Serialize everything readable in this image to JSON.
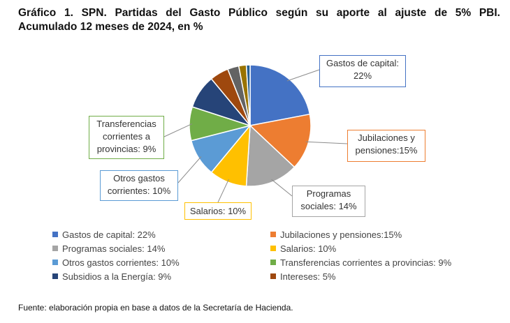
{
  "title": {
    "line1": "Gráfico 1. SPN. Partidas del Gasto Público según su aporte al ajuste de 5% PBI.",
    "line2": "Acumulado 12 meses de 2024, en %"
  },
  "chart_data": {
    "type": "pie",
    "title": "Gráfico 1. SPN. Partidas del Gasto Público según su aporte al ajuste de 5% PBI. Acumulado 12 meses de 2024, en %",
    "unit": "%",
    "slices": [
      {
        "name": "Gastos de capital",
        "value": 22,
        "color": "#4472C4"
      },
      {
        "name": "Jubilaciones y pensiones",
        "value": 15,
        "color": "#ED7D31"
      },
      {
        "name": "Programas sociales",
        "value": 14,
        "color": "#A5A5A5"
      },
      {
        "name": "Salarios",
        "value": 10,
        "color": "#FFC000"
      },
      {
        "name": "Otros gastos corrientes",
        "value": 10,
        "color": "#5B9BD5"
      },
      {
        "name": "Transferencias corrientes a provincias",
        "value": 9,
        "color": "#70AD47"
      },
      {
        "name": "Subsidios a la Energía",
        "value": 9,
        "color": "#264478"
      },
      {
        "name": "Intereses",
        "value": 5,
        "color": "#9E480E"
      },
      {
        "name": "",
        "value": 3,
        "color": "#636363"
      },
      {
        "name": "",
        "value": 2,
        "color": "#997300"
      },
      {
        "name": "",
        "value": 1,
        "color": "#255E91"
      }
    ],
    "callouts": [
      {
        "lines": [
          "Gastos de capital:",
          "22%"
        ],
        "color": "#4472C4"
      },
      {
        "lines": [
          "Jubilaciones y",
          "pensiones:15%"
        ],
        "color": "#ED7D31"
      },
      {
        "lines": [
          "Programas",
          "sociales: 14%"
        ],
        "color": "#A5A5A5"
      },
      {
        "lines": [
          "Salarios: 10%"
        ],
        "color": "#FFC000"
      },
      {
        "lines": [
          "Otros gastos",
          "corrientes: 10%"
        ],
        "color": "#5B9BD5"
      },
      {
        "lines": [
          "Transferencias",
          "corrientes a",
          "provincias: 9%"
        ],
        "color": "#70AD47"
      }
    ],
    "legend": [
      {
        "label": "Gastos de capital: 22%",
        "color": "#4472C4"
      },
      {
        "label": "Jubilaciones y pensiones:15%",
        "color": "#ED7D31"
      },
      {
        "label": "Programas sociales: 14%",
        "color": "#A5A5A5"
      },
      {
        "label": "Salarios: 10%",
        "color": "#FFC000"
      },
      {
        "label": "Otros gastos corrientes: 10%",
        "color": "#5B9BD5"
      },
      {
        "label": "Transferencias corrientes a provincias: 9%",
        "color": "#70AD47"
      },
      {
        "label": "Subsidios a la Energía: 9%",
        "color": "#264478"
      },
      {
        "label": "Intereses: 5%",
        "color": "#9E480E"
      }
    ],
    "legend_placement": "bottom"
  },
  "source": "Fuente: elaboración propia en base a datos de la Secretaría de Hacienda."
}
